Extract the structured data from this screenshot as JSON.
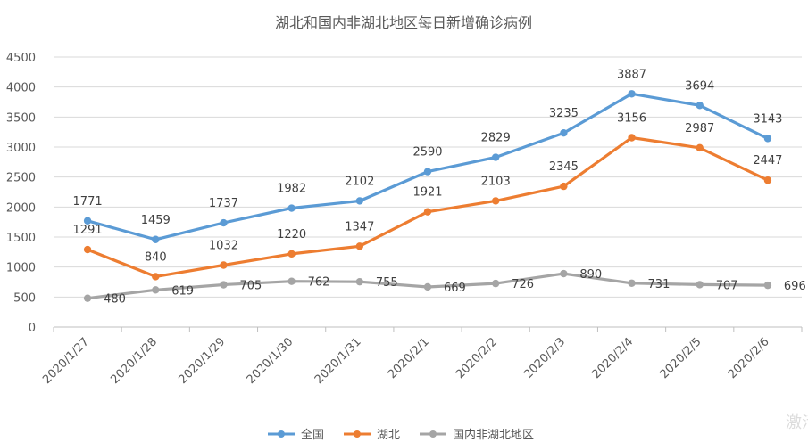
{
  "chart_data": {
    "type": "line",
    "title": "湖北和国内非湖北地区每日新增确诊病例",
    "categories": [
      "2020/1/27",
      "2020/1/28",
      "2020/1/29",
      "2020/1/30",
      "2020/1/31",
      "2020/2/1",
      "2020/2/2",
      "2020/2/3",
      "2020/2/4",
      "2020/2/5",
      "2020/2/6"
    ],
    "ylim": [
      0,
      4500
    ],
    "yticks": [
      0,
      500,
      1000,
      1500,
      2000,
      2500,
      3000,
      3500,
      4000,
      4500
    ],
    "grid": true,
    "legend_position": "bottom",
    "series": [
      {
        "name": "全国",
        "color": "#5b9bd5",
        "values": [
          1771,
          1459,
          1737,
          1982,
          2102,
          2590,
          2829,
          3235,
          3887,
          3694,
          3143
        ]
      },
      {
        "name": "湖北",
        "color": "#ed7d31",
        "values": [
          1291,
          840,
          1032,
          1220,
          1347,
          1921,
          2103,
          2345,
          3156,
          2987,
          2447
        ]
      },
      {
        "name": "国内非湖北地区",
        "color": "#a5a5a5",
        "values": [
          480,
          619,
          705,
          762,
          755,
          669,
          726,
          890,
          731,
          707,
          696
        ]
      }
    ]
  },
  "watermark": "激活"
}
